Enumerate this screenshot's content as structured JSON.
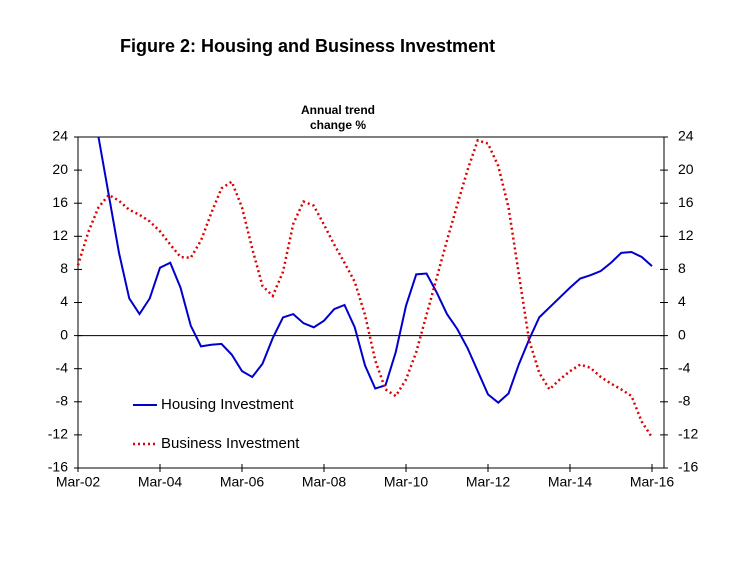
{
  "chart_data": {
    "type": "line",
    "title": "Figure 2: Housing and Business Investment",
    "y_axis_label": [
      "Annual trend",
      "change %"
    ],
    "categories": [
      "Mar-02",
      null,
      null,
      null,
      null,
      null,
      null,
      null,
      "Mar-04",
      null,
      null,
      null,
      null,
      null,
      null,
      null,
      "Mar-06",
      null,
      null,
      null,
      null,
      null,
      null,
      null,
      "Mar-08",
      null,
      null,
      null,
      null,
      null,
      null,
      null,
      "Mar-10",
      null,
      null,
      null,
      null,
      null,
      null,
      null,
      "Mar-12",
      null,
      null,
      null,
      null,
      null,
      null,
      null,
      "Mar-14",
      null,
      null,
      null,
      null,
      null,
      null,
      null,
      "Mar-16"
    ],
    "series": [
      {
        "name": "Housing Investment",
        "color": "#0000cc",
        "dash": "solid",
        "values": [
          null,
          null,
          24,
          17,
          10,
          4.5,
          2.6,
          4.5,
          8.2,
          8.8,
          5.8,
          1.2,
          -1.3,
          -1.1,
          -1.0,
          -2.3,
          -4.3,
          -5.0,
          -3.4,
          -0.3,
          2.2,
          2.6,
          1.5,
          1.0,
          1.8,
          3.2,
          3.7,
          1.0,
          -3.6,
          -6.4,
          -6.0,
          -2.0,
          3.6,
          7.4,
          7.5,
          5.2,
          2.6,
          0.8,
          -1.5,
          -4.3,
          -7.1,
          -8.1,
          -7.0,
          -3.5,
          -0.5,
          2.2,
          3.4,
          4.6,
          5.8,
          6.9,
          7.3,
          7.8,
          8.8,
          10.0,
          10.1,
          9.5,
          8.4
        ]
      },
      {
        "name": "Business Investment",
        "color": "#dd0000",
        "dash": "dotted",
        "values": [
          8.5,
          12.5,
          15.5,
          17.0,
          16.3,
          15.2,
          14.6,
          13.8,
          12.6,
          11.0,
          9.5,
          9.4,
          11.5,
          14.8,
          17.8,
          18.6,
          15.5,
          10.5,
          6.0,
          4.8,
          7.7,
          13.5,
          16.2,
          15.7,
          13.4,
          11.0,
          8.8,
          6.5,
          2.5,
          -3.0,
          -6.5,
          -7.3,
          -5.3,
          -2.0,
          2.5,
          7.0,
          11.5,
          15.8,
          20.0,
          23.6,
          23.2,
          20.5,
          15.5,
          7.5,
          -0.5,
          -4.5,
          -6.5,
          -5.3,
          -4.3,
          -3.5,
          -3.9,
          -5.0,
          -5.8,
          -6.5,
          -7.3,
          -10.4,
          -12.3
        ]
      }
    ],
    "ylim": [
      -16,
      24
    ],
    "yticks": [
      -16,
      -12,
      -8,
      -4,
      0,
      4,
      8,
      12,
      16,
      20,
      24
    ],
    "y2lim": [
      -16,
      24
    ],
    "y2ticks": [
      -16,
      -12,
      -8,
      -4,
      0,
      4,
      8,
      12,
      16,
      20,
      24
    ],
    "grid": false,
    "legend": "lower left"
  }
}
